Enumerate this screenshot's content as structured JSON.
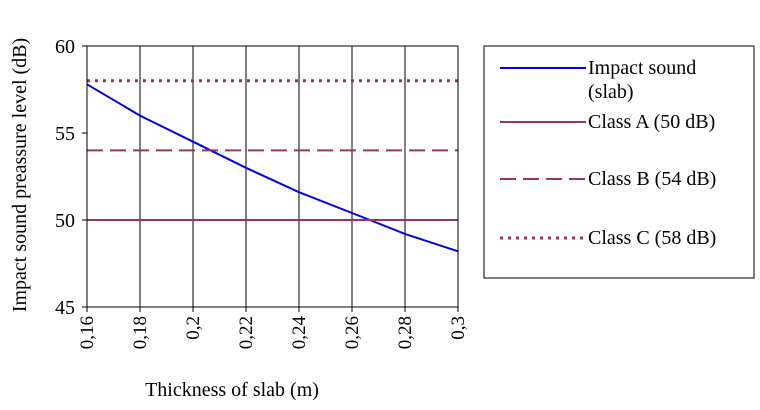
{
  "chart_data": {
    "type": "line",
    "xlabel": "Thickness of slab (m)",
    "ylabel": "Impact sound preassure level (dB)",
    "x_ticks": [
      "0,16",
      "0,18",
      "0,2",
      "0,22",
      "0,24",
      "0,26",
      "0,28",
      "0,3"
    ],
    "y_ticks": [
      "45",
      "50",
      "55",
      "60"
    ],
    "xlim": [
      0.16,
      0.3
    ],
    "ylim": [
      45,
      60
    ],
    "grid": "vertical",
    "legend_position": "right",
    "series": [
      {
        "name": "Impact sound (slab)",
        "name_lines": [
          "Impact sound",
          "(slab)"
        ],
        "color": "#0000ee",
        "style": "solid",
        "x": [
          0.16,
          0.18,
          0.2,
          0.22,
          0.24,
          0.26,
          0.28,
          0.3
        ],
        "y": [
          57.8,
          56.0,
          54.5,
          53.0,
          51.6,
          50.4,
          49.2,
          48.2
        ]
      },
      {
        "name": "Class A (50 dB)",
        "name_lines": [
          "Class A (50 dB)"
        ],
        "color": "#993366",
        "style": "solid",
        "x": [
          0.16,
          0.3
        ],
        "y": [
          50,
          50
        ]
      },
      {
        "name": "Class B (54 dB)",
        "name_lines": [
          "Class B (54 dB)"
        ],
        "color": "#993366",
        "style": "dashed",
        "x": [
          0.16,
          0.3
        ],
        "y": [
          54,
          54
        ]
      },
      {
        "name": "Class C (58 dB)",
        "name_lines": [
          "Class C (58 dB)"
        ],
        "color": "#993366",
        "style": "dotted",
        "x": [
          0.16,
          0.3
        ],
        "y": [
          58,
          58
        ]
      }
    ]
  }
}
